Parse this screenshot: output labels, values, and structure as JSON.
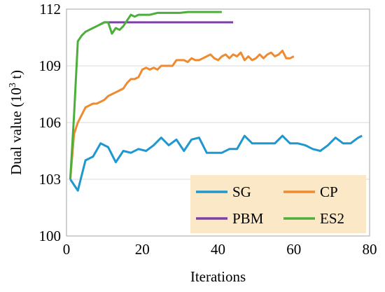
{
  "chart_data": {
    "type": "line",
    "xlabel": "Iterations",
    "ylabel_main": "Dual value (10",
    "ylabel_sup": "3",
    "ylabel_end": " t)",
    "xlim": [
      0,
      80
    ],
    "ylim": [
      100,
      112
    ],
    "x_ticks": [
      0,
      20,
      40,
      60,
      80
    ],
    "y_ticks": [
      100,
      103,
      106,
      109,
      112
    ],
    "x_tick_labels": [
      "0",
      "20",
      "40",
      "60",
      "80"
    ],
    "y_tick_labels": [
      "100",
      "103",
      "106",
      "109",
      "112"
    ],
    "grid": "horizontal",
    "legend_position": "bottom-right",
    "legend_bg": "#fbe8c6",
    "series": [
      {
        "name": "SG",
        "color": "#1f97cf",
        "x": [
          1,
          3,
          5,
          7,
          9,
          11,
          13,
          15,
          17,
          19,
          21,
          23,
          25,
          27,
          29,
          31,
          33,
          35,
          37,
          39,
          41,
          43,
          45,
          47,
          49,
          51,
          53,
          55,
          57,
          59,
          61,
          63,
          65,
          67,
          69,
          71,
          73,
          75,
          77,
          78
        ],
        "y": [
          103.0,
          102.4,
          104.0,
          104.2,
          104.9,
          104.7,
          103.9,
          104.5,
          104.4,
          104.6,
          104.5,
          104.8,
          105.2,
          104.8,
          105.1,
          104.5,
          105.1,
          105.2,
          104.4,
          104.4,
          104.4,
          104.6,
          104.6,
          105.3,
          104.9,
          104.9,
          104.9,
          104.9,
          105.3,
          104.9,
          104.9,
          104.8,
          104.6,
          104.5,
          104.8,
          105.2,
          104.9,
          104.9,
          105.2,
          105.3
        ]
      },
      {
        "name": "CP",
        "color": "#f08a30",
        "x": [
          1,
          2,
          3,
          4,
          5,
          6,
          7,
          8,
          9,
          10,
          11,
          12,
          13,
          14,
          15,
          16,
          17,
          18,
          19,
          20,
          21,
          22,
          23,
          24,
          25,
          26,
          27,
          28,
          29,
          30,
          31,
          32,
          33,
          34,
          35,
          36,
          37,
          38,
          39,
          40,
          41,
          42,
          43,
          44,
          45,
          46,
          47,
          48,
          49,
          50,
          51,
          52,
          53,
          54,
          55,
          56,
          57,
          58,
          59,
          60
        ],
        "y": [
          103.0,
          105.4,
          106.0,
          106.4,
          106.8,
          106.9,
          107.0,
          107.0,
          107.1,
          107.2,
          107.4,
          107.5,
          107.6,
          107.7,
          107.8,
          108.1,
          108.3,
          108.3,
          108.4,
          108.8,
          108.9,
          108.8,
          108.9,
          108.8,
          109.0,
          109.0,
          109.0,
          109.0,
          109.3,
          109.3,
          109.3,
          109.2,
          109.4,
          109.3,
          109.3,
          109.4,
          109.5,
          109.6,
          109.4,
          109.3,
          109.5,
          109.6,
          109.4,
          109.6,
          109.5,
          109.7,
          109.3,
          109.5,
          109.3,
          109.4,
          109.6,
          109.4,
          109.6,
          109.7,
          109.5,
          109.6,
          109.8,
          109.4,
          109.4,
          109.5
        ]
      },
      {
        "name": "PBM",
        "color": "#7e3fa8",
        "x": [
          9,
          10,
          12,
          15,
          20,
          25,
          30,
          35,
          40,
          44
        ],
        "y": [
          111.2,
          111.3,
          111.3,
          111.3,
          111.3,
          111.3,
          111.3,
          111.3,
          111.3,
          111.3
        ]
      },
      {
        "name": "ES2",
        "color": "#4caf3c",
        "x": [
          1,
          2,
          3,
          4,
          5,
          6,
          7,
          8,
          9,
          10,
          11,
          12,
          13,
          14,
          15,
          16,
          17,
          18,
          19,
          20,
          22,
          24,
          26,
          28,
          30,
          32,
          34,
          36,
          38,
          40,
          41
        ],
        "y": [
          103.0,
          106.4,
          110.3,
          110.6,
          110.8,
          110.9,
          111.0,
          111.1,
          111.2,
          111.3,
          111.3,
          110.7,
          111.0,
          110.9,
          111.1,
          111.4,
          111.7,
          111.6,
          111.7,
          111.7,
          111.7,
          111.8,
          111.8,
          111.8,
          111.8,
          111.85,
          111.85,
          111.85,
          111.85,
          111.85,
          111.85
        ]
      }
    ]
  }
}
